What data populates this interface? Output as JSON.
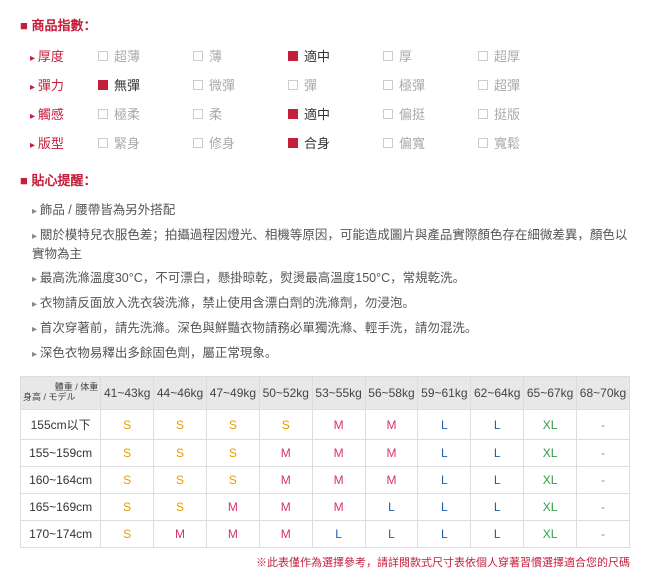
{
  "section1_title": "商品指數：",
  "attrs": [
    {
      "label": "厚度",
      "opts": [
        "超薄",
        "薄",
        "適中",
        "厚",
        "超厚"
      ],
      "selected": 2
    },
    {
      "label": "彈力",
      "opts": [
        "無彈",
        "微彈",
        "彈",
        "極彈",
        "超彈"
      ],
      "selected": 0
    },
    {
      "label": "觸感",
      "opts": [
        "極柔",
        "柔",
        "適中",
        "偏挺",
        "挺版"
      ],
      "selected": 2
    },
    {
      "label": "版型",
      "opts": [
        "緊身",
        "修身",
        "合身",
        "偏寬",
        "寬鬆"
      ],
      "selected": 2
    }
  ],
  "section2_title": "貼心提醒：",
  "tips": [
    "飾品 / 腰帶皆為另外搭配",
    "關於模特兒衣服色差；拍攝過程因燈光、相機等原因，可能造成圖片與產品實際顏色存在細微差異，顏色以實物為主",
    "最高洗滌溫度30°C，不可漂白，懸掛晾乾，熨燙最高溫度150°C，常規乾洗。",
    "衣物請反面放入洗衣袋洗滌，禁止使用含漂白劑的洗滌劑，勿浸泡。",
    "首次穿著前，請先洗滌。深色與鮮豔衣物請務必單獨洗滌、輕手洗，請勿混洗。",
    "深色衣物易釋出多餘固色劑，屬正常現象。"
  ],
  "corner_top": "體重 / 体重",
  "corner_bottom": "身高 / モデル",
  "weight_cols": [
    "41~43kg",
    "44~46kg",
    "47~49kg",
    "50~52kg",
    "53~55kg",
    "56~58kg",
    "59~61kg",
    "62~64kg",
    "65~67kg",
    "68~70kg"
  ],
  "height_rows": [
    "155cm以下",
    "155~159cm",
    "160~164cm",
    "165~169cm",
    "170~174cm"
  ],
  "size_grid": [
    [
      "S",
      "S",
      "S",
      "S",
      "M",
      "M",
      "L",
      "L",
      "XL",
      "-"
    ],
    [
      "S",
      "S",
      "S",
      "M",
      "M",
      "M",
      "L",
      "L",
      "XL",
      "-"
    ],
    [
      "S",
      "S",
      "S",
      "M",
      "M",
      "M",
      "L",
      "L",
      "XL",
      "-"
    ],
    [
      "S",
      "S",
      "M",
      "M",
      "M",
      "L",
      "L",
      "L",
      "XL",
      "-"
    ],
    [
      "S",
      "M",
      "M",
      "M",
      "L",
      "L",
      "L",
      "L",
      "XL",
      "-"
    ]
  ],
  "foot_note": "※此表僅作為選擇參考，請詳閱款式尺寸表依個人穿著習慣選擇適合您的尺碼"
}
